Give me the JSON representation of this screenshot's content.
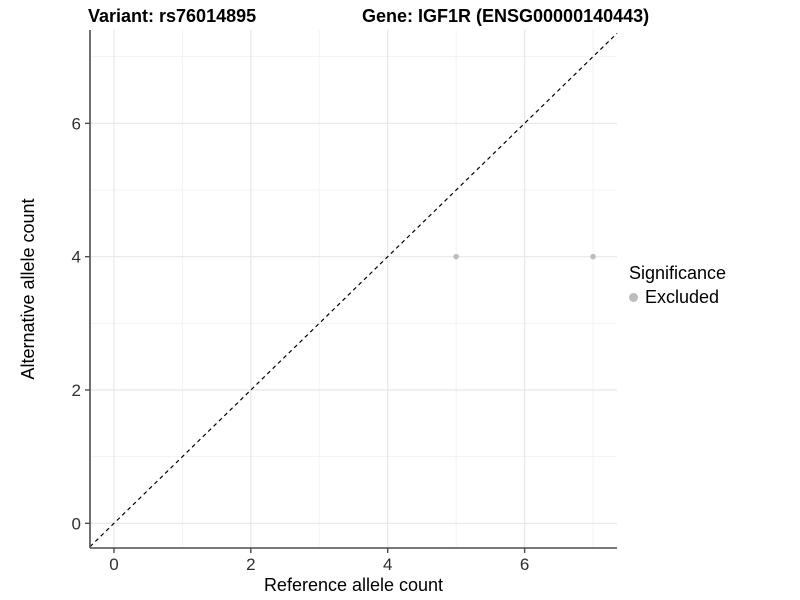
{
  "chart_data": {
    "type": "scatter",
    "title_left": "Variant: rs76014895",
    "title_right": "Gene: IGF1R (ENSG00000140443)",
    "xlabel": "Reference allele count",
    "ylabel": "Alternative allele count",
    "xlim": [
      -0.35,
      7.35
    ],
    "ylim": [
      -0.37,
      7.4
    ],
    "x_ticks": [
      0,
      2,
      4,
      6
    ],
    "y_ticks": [
      0,
      2,
      4,
      6
    ],
    "x_minor": [
      1,
      3,
      5,
      7
    ],
    "y_minor": [
      1,
      3,
      5,
      7
    ],
    "grid": "major+minor",
    "legend_position": "right-center",
    "series": [
      {
        "name": "Excluded",
        "color": "#bdbdbd",
        "points": [
          [
            5,
            4
          ],
          [
            7,
            4
          ]
        ]
      }
    ],
    "reference_line": {
      "type": "identity y=x",
      "style": "dashed",
      "color": "#000000"
    }
  },
  "legend": {
    "title": "Significance",
    "items": [
      {
        "label": "Excluded",
        "color": "#bdbdbd"
      }
    ]
  },
  "colors": {
    "background": "#ffffff",
    "axis": "#4d4d4d",
    "tick_label": "#303030",
    "grid_major": "#e7e7e7",
    "grid_minor": "#f3f3f3"
  }
}
